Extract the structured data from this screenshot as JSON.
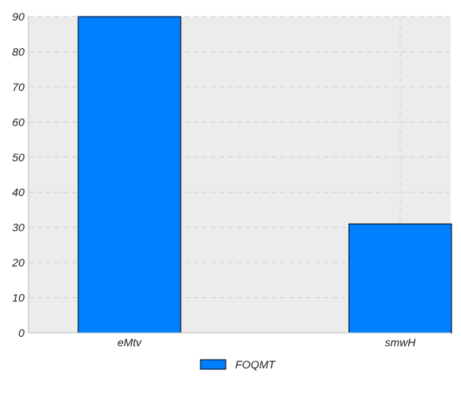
{
  "chart_data": {
    "type": "bar",
    "categories": [
      "eMtv",
      "smwH"
    ],
    "series": [
      {
        "name": "FOQMT",
        "values": [
          90,
          31
        ],
        "color": "#0080ff"
      }
    ],
    "ylim": [
      0,
      90
    ],
    "yticks": [
      0,
      10,
      20,
      30,
      40,
      50,
      60,
      70,
      80,
      90
    ],
    "grid": true,
    "legend": "bottom-center",
    "plot_background": "#ececec"
  }
}
